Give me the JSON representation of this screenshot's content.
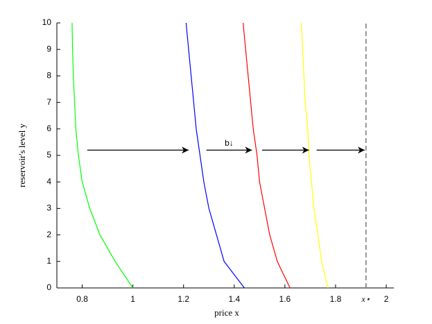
{
  "chart_data": {
    "type": "line",
    "xlabel": "price x",
    "ylabel": "reservoir's level y",
    "xlim": [
      0.7,
      2.03
    ],
    "ylim": [
      0,
      10
    ],
    "xticks": [
      0.8,
      1,
      1.2,
      1.4,
      1.6,
      1.8,
      {
        "value": 1.92,
        "label": "x⋆"
      },
      2
    ],
    "yticks": [
      0,
      1,
      2,
      3,
      4,
      5,
      6,
      7,
      8,
      9,
      10
    ],
    "series": [
      {
        "color": "#00ff00",
        "x": [
          1.0,
          0.93,
          0.87,
          0.83,
          0.8,
          0.785,
          0.775,
          0.77,
          0.765,
          0.762,
          0.76
        ],
        "y": [
          0,
          1,
          2,
          3,
          4,
          5,
          6,
          7,
          8,
          9,
          10
        ]
      },
      {
        "color": "#0000ff",
        "x": [
          1.44,
          1.36,
          1.33,
          1.3,
          1.28,
          1.265,
          1.25,
          1.24,
          1.23,
          1.22,
          1.21
        ],
        "y": [
          0,
          1,
          2,
          3,
          4,
          5,
          6,
          7,
          8,
          9,
          10
        ]
      },
      {
        "color": "#ff0000",
        "x": [
          1.62,
          1.57,
          1.54,
          1.52,
          1.5,
          1.49,
          1.475,
          1.465,
          1.455,
          1.445,
          1.435
        ],
        "y": [
          0,
          1,
          2,
          3,
          4,
          5,
          6,
          7,
          8,
          9,
          10
        ]
      },
      {
        "color": "#ffff00",
        "x": [
          1.77,
          1.745,
          1.73,
          1.715,
          1.705,
          1.695,
          1.69,
          1.68,
          1.675,
          1.67,
          1.665
        ],
        "y": [
          0,
          1,
          2,
          3,
          4,
          5,
          6,
          7,
          8,
          9,
          10
        ]
      }
    ],
    "vline": {
      "x": 1.92,
      "color": "#777777"
    },
    "arrows": [
      {
        "x": [
          0.82,
          1.22
        ],
        "y": 5.2
      },
      {
        "x": [
          1.29,
          1.47
        ],
        "y": 5.2
      },
      {
        "x": [
          1.51,
          1.695
        ],
        "y": 5.2
      },
      {
        "x": [
          1.725,
          1.915
        ],
        "y": 5.2
      }
    ],
    "annotation": {
      "text": "b↓",
      "x": 1.38,
      "y": 5.45
    }
  }
}
